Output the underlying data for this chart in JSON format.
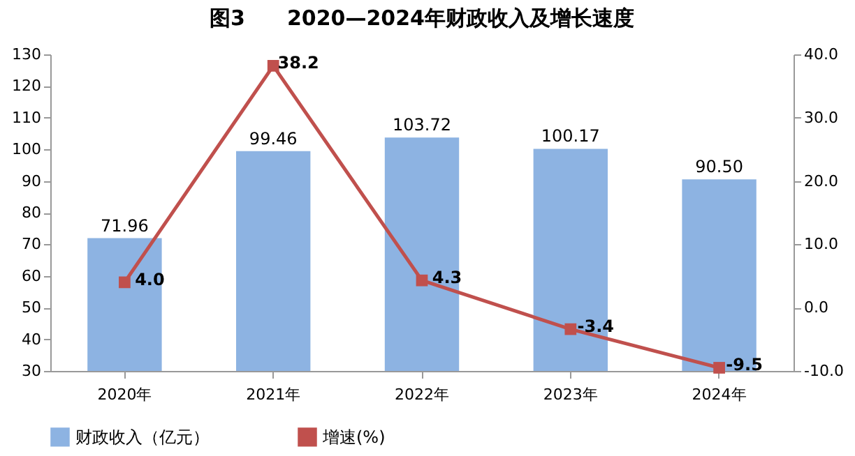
{
  "chart_data": {
    "type": "bar",
    "title": "图3　　2020—2024年财政收入及增长速度",
    "categories": [
      "2020年",
      "2021年",
      "2022年",
      "2023年",
      "2024年"
    ],
    "series": [
      {
        "name": "财政收入（亿元）",
        "color": "#8db3e2",
        "values": [
          71.96,
          99.46,
          103.72,
          100.17,
          90.5
        ],
        "value_labels": [
          "71.96",
          "99.46",
          "103.72",
          "100.17",
          "90.50"
        ]
      },
      {
        "name": "增速(%)",
        "type": "line",
        "axis": "y2",
        "color": "#c0504d",
        "values": [
          4.0,
          38.2,
          4.3,
          -3.4,
          -9.5
        ],
        "value_labels": [
          "4.0",
          "38.2",
          "4.3",
          "-3.4",
          "-9.5"
        ]
      }
    ],
    "ylim": [
      30,
      130
    ],
    "yticks": [
      30,
      40,
      50,
      60,
      70,
      80,
      90,
      100,
      110,
      120,
      130
    ],
    "y2lim": [
      -10,
      40
    ],
    "y2ticks": [
      {
        "value": -10,
        "label": "-10.0"
      },
      {
        "value": 0,
        "label": "0.0"
      },
      {
        "value": 10,
        "label": "10.0"
      },
      {
        "value": 20,
        "label": "20.0"
      },
      {
        "value": 30,
        "label": "30.0"
      },
      {
        "value": 40,
        "label": "40.0"
      }
    ],
    "marker": "square",
    "legend": "bottom",
    "grid": false
  }
}
